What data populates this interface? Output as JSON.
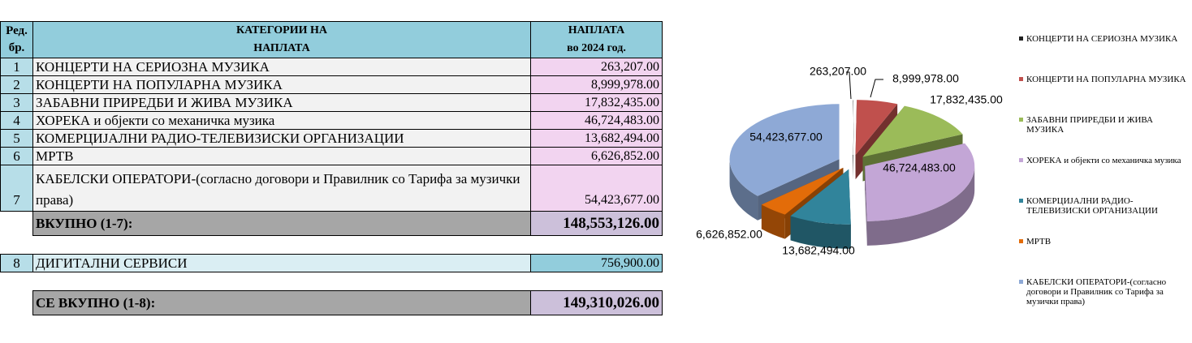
{
  "table": {
    "header": [
      [
        "Ред.",
        "бр."
      ],
      [
        "КАТЕГОРИИ НА",
        "НАПЛАТА"
      ],
      [
        "НАПЛАТА",
        "во 2024 год."
      ]
    ],
    "rows": [
      [
        "1",
        "КОНЦЕРТИ НА СЕРИОЗНА МУЗИКА",
        "263,207.00"
      ],
      [
        "2",
        "КОНЦЕРТИ НА ПОПУЛАРНА МУЗИКА",
        "8,999,978.00"
      ],
      [
        "3",
        "ЗАБАВНИ ПРИРЕДБИ И ЖИВА МУЗИКА",
        "17,832,435.00"
      ],
      [
        "4",
        "ХОРЕКА и објекти со механичка музика",
        "46,724,483.00"
      ],
      [
        "5",
        "КОМЕРЦИЈАЛНИ РАДИО-ТЕЛЕВИЗИСКИ ОРГАНИЗАЦИИ",
        "13,682,494.00"
      ],
      [
        "6",
        "МРТВ",
        "6,626,852.00"
      ],
      [
        "7",
        "КАБЕЛСКИ ОПЕРАТОРИ-(согласно договори и Правилник со Тарифа за музички права)",
        "54,423,677.00"
      ]
    ],
    "total": [
      "ВКУПНО (1-7):",
      "148,553,126.00"
    ],
    "digital": [
      "8",
      "ДИГИТАЛНИ СЕРВИСИ",
      "756,900.00"
    ],
    "grand_total": [
      "СЕ ВКУПНО (1-8):",
      "149,310,026.00"
    ]
  },
  "chart_data": {
    "type": "pie",
    "categories": [
      "КОНЦЕРТИ НА СЕРИОЗНА МУЗИКА",
      "КОНЦЕРТИ НА ПОПУЛАРНА МУЗИКА",
      "ЗАБАВНИ ПРИРЕДБИ И ЖИВА МУЗИКА",
      "ХОРЕКА и објекти со механичка музика",
      "КОМЕРЦИЈАЛНИ РАДИО-ТЕЛЕВИЗИСКИ ОРГАНИЗАЦИИ",
      "МРТВ",
      "КАБЕЛСКИ ОПЕРАТОРИ-(согласно договори и Правилник со Тарифа за музички права)"
    ],
    "values": [
      263207,
      8999978,
      17832435,
      46724483,
      13682494,
      6626852,
      54423677
    ],
    "value_labels": [
      "263,207.00",
      "8,999,978.00",
      "17,832,435.00",
      "46,724,483.00",
      "13,682,494.00",
      "6,626,852.00",
      "54,423,677.00"
    ],
    "colors": [
      "#222222",
      "#c0504d",
      "#9bbb59",
      "#c3a6d6",
      "#31849b",
      "#e36c09",
      "#8ea9d6"
    ],
    "legend": "right"
  }
}
